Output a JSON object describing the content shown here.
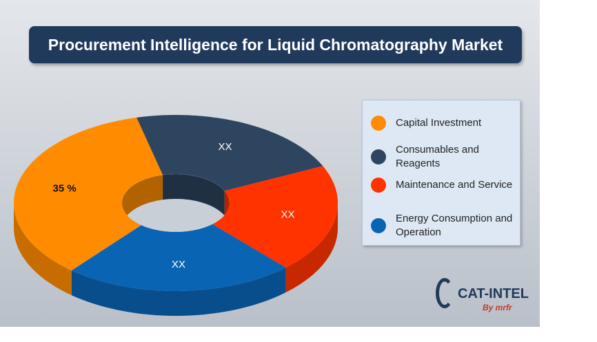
{
  "chart_data": {
    "type": "donut3d",
    "title": "Procurement Intelligence for Liquid Chromatography Market",
    "categories": [
      "Capital Investment",
      "Consumables and Reagents",
      "Maintenance and Service",
      "Energy Consumption and Operation"
    ],
    "values": [
      35,
      22,
      20,
      23
    ],
    "value_labels": [
      "35 %",
      "XX",
      "XX",
      "XX"
    ],
    "colors": [
      "#ff8c00",
      "#2e4560",
      "#ff3300",
      "#0a64b4"
    ],
    "legend": "right"
  },
  "logo": {
    "name": "CAT-INTEL",
    "tagline": "By mrfr"
  }
}
